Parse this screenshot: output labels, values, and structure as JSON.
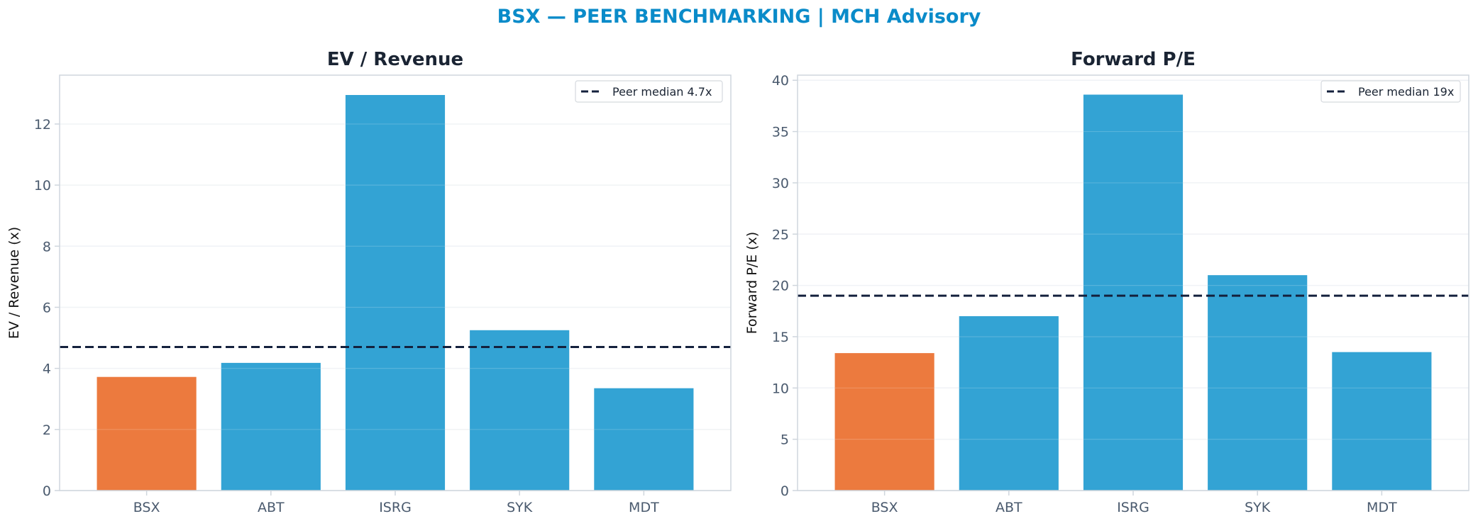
{
  "figure": {
    "title": "BSX — PEER BENCHMARKING | MCH Advisory",
    "title_color": "#0a8bc9"
  },
  "colors": {
    "subject": "#ec7a3e",
    "peer": "#33a3d4",
    "median_line": "#14213d",
    "axis_text": "#4a5a6e",
    "title_text": "#1a2433",
    "grid": "#eef1f4",
    "spine": "#cfd6dd"
  },
  "chart_data": [
    {
      "type": "bar",
      "title": "EV / Revenue",
      "ylabel": "EV / Revenue (x)",
      "xlabel": "",
      "categories": [
        "BSX",
        "ABT",
        "ISRG",
        "SYK",
        "MDT"
      ],
      "values": [
        3.72,
        4.18,
        12.95,
        5.25,
        3.35
      ],
      "highlight": "BSX",
      "ylim": [
        0,
        13.6
      ],
      "yticks": [
        0,
        2,
        4,
        6,
        8,
        10,
        12
      ],
      "ytick_labels": [
        "0",
        "2",
        "4",
        "6",
        "8",
        "10",
        "12"
      ],
      "reference_line": {
        "value": 4.7,
        "label": "Peer median 4.7x"
      },
      "grid": true,
      "legend_position": "top-right"
    },
    {
      "type": "bar",
      "title": "Forward P/E",
      "ylabel": "Forward P/E (x)",
      "xlabel": "",
      "categories": [
        "BSX",
        "ABT",
        "ISRG",
        "SYK",
        "MDT"
      ],
      "values": [
        13.4,
        17.0,
        38.6,
        21.0,
        13.5
      ],
      "highlight": "BSX",
      "ylim": [
        0,
        40.5
      ],
      "yticks": [
        0,
        5,
        10,
        15,
        20,
        25,
        30,
        35,
        40
      ],
      "ytick_labels": [
        "0",
        "5",
        "10",
        "15",
        "20",
        "25",
        "30",
        "35",
        "40"
      ],
      "reference_line": {
        "value": 19,
        "label": "Peer median 19x"
      },
      "grid": true,
      "legend_position": "top-right"
    }
  ]
}
